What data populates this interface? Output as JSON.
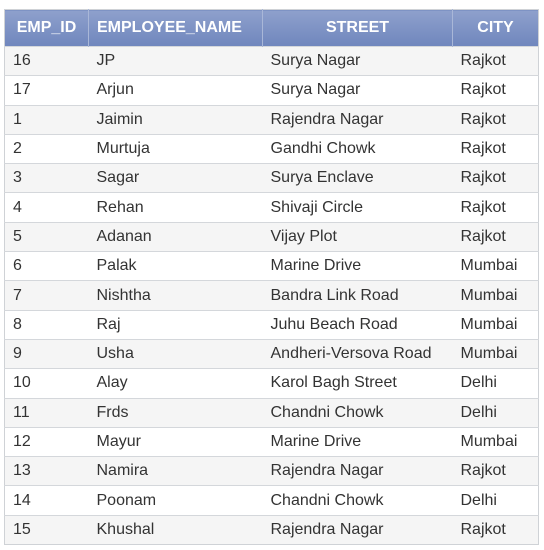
{
  "table": {
    "columns": [
      "EMP_ID",
      "EMPLOYEE_NAME",
      "STREET",
      "CITY"
    ],
    "rows": [
      [
        "16",
        "JP",
        "Surya Nagar",
        "Rajkot"
      ],
      [
        "17",
        "Arjun",
        "Surya Nagar",
        "Rajkot"
      ],
      [
        "1",
        "Jaimin",
        "Rajendra Nagar",
        "Rajkot"
      ],
      [
        "2",
        "Murtuja",
        "Gandhi Chowk",
        "Rajkot"
      ],
      [
        "3",
        "Sagar",
        "Surya Enclave",
        "Rajkot"
      ],
      [
        "4",
        "Rehan",
        "Shivaji Circle",
        "Rajkot"
      ],
      [
        "5",
        "Adanan",
        "Vijay Plot",
        "Rajkot"
      ],
      [
        "6",
        "Palak",
        "Marine Drive",
        "Mumbai"
      ],
      [
        "7",
        "Nishtha",
        "Bandra Link Road",
        "Mumbai"
      ],
      [
        "8",
        "Raj",
        "Juhu Beach Road",
        "Mumbai"
      ],
      [
        "9",
        "Usha",
        "Andheri-Versova Road",
        "Mumbai"
      ],
      [
        "10",
        "Alay",
        "Karol Bagh Street",
        "Delhi"
      ],
      [
        "11",
        "Frds",
        "Chandni Chowk",
        "Delhi"
      ],
      [
        "12",
        "Mayur",
        "Marine Drive",
        "Mumbai"
      ],
      [
        "13",
        "Namira",
        "Rajendra Nagar",
        "Rajkot"
      ],
      [
        "14",
        "Poonam",
        "Chandni Chowk",
        "Delhi"
      ],
      [
        "15",
        "Khushal",
        "Rajendra Nagar",
        "Rajkot"
      ]
    ]
  },
  "colors": {
    "header_bg": "#7f93c5",
    "header_text": "#ffffff",
    "row_alt": "#f5f5f5",
    "border": "#d4d7db",
    "text": "#333333"
  }
}
